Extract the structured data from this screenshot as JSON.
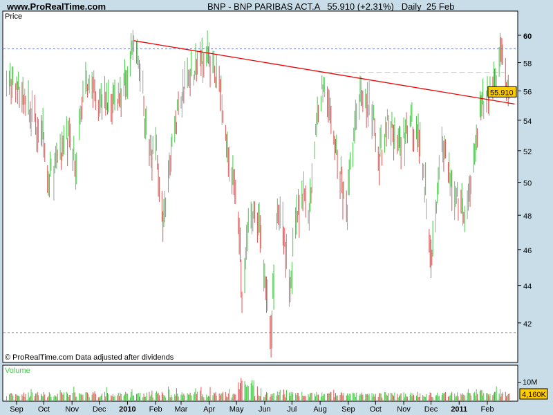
{
  "header": {
    "site": "www.ProRealTime.com",
    "title": "BNP - BNP PARIBAS ACT.A   55.910 (+2.31%)   Daily  25 Feb"
  },
  "colors": {
    "background": "#c9dde8",
    "up": "#44cc44",
    "down": "#dd5555",
    "neutral": "#a0a0a0",
    "trendline": "#ee0000",
    "last_price_box": "#ffcc00",
    "blue_level": "#6688ee"
  },
  "chart_data": {
    "type": "ohlc-bar",
    "price_panel_label": "Price",
    "footer_note": "© ProRealTime.com  Data adjusted after dividends",
    "y_scale": "log",
    "ylim": [
      41,
      61
    ],
    "y_ticks": [
      42,
      44,
      46,
      48,
      50,
      52,
      54,
      56,
      58,
      60
    ],
    "x_ticks": [
      {
        "label": "Sep",
        "date": "2009-09-01"
      },
      {
        "label": "Oct",
        "date": "2009-10-01"
      },
      {
        "label": "Nov",
        "date": "2009-11-01"
      },
      {
        "label": "Dec",
        "date": "2009-12-01"
      },
      {
        "label": "2010",
        "date": "2010-01-01",
        "bold": true
      },
      {
        "label": "Feb",
        "date": "2010-02-01"
      },
      {
        "label": "Mar",
        "date": "2010-03-01"
      },
      {
        "label": "Apr",
        "date": "2010-04-01"
      },
      {
        "label": "May",
        "date": "2010-05-01"
      },
      {
        "label": "Jun",
        "date": "2010-06-01"
      },
      {
        "label": "Jul",
        "date": "2010-07-01"
      },
      {
        "label": "Aug",
        "date": "2010-08-01"
      },
      {
        "label": "Sep",
        "date": "2010-09-01"
      },
      {
        "label": "Oct",
        "date": "2010-10-01"
      },
      {
        "label": "Nov",
        "date": "2010-11-01"
      },
      {
        "label": "Dec",
        "date": "2010-12-01"
      },
      {
        "label": "2011",
        "date": "2011-01-01",
        "bold": true
      },
      {
        "label": "Feb",
        "date": "2011-02-01"
      }
    ],
    "price_path": [
      [
        "2009-08-21",
        57
      ],
      [
        "2009-09-13",
        55
      ],
      [
        "2009-10-01",
        53
      ],
      [
        "2009-10-05",
        50
      ],
      [
        "2009-10-28",
        53
      ],
      [
        "2009-11-05",
        51
      ],
      [
        "2009-11-16",
        57
      ],
      [
        "2009-11-27",
        56
      ],
      [
        "2009-12-12",
        55
      ],
      [
        "2009-12-27",
        56
      ],
      [
        "2010-01-08",
        59.5
      ],
      [
        "2010-01-16",
        57
      ],
      [
        "2010-01-24",
        52
      ],
      [
        "2010-02-02",
        52
      ],
      [
        "2010-02-09",
        47
      ],
      [
        "2010-02-20",
        53
      ],
      [
        "2010-03-07",
        57
      ],
      [
        "2010-03-30",
        58.5
      ],
      [
        "2010-04-14",
        56
      ],
      [
        "2010-04-21",
        52
      ],
      [
        "2010-05-03",
        48
      ],
      [
        "2010-05-07",
        43
      ],
      [
        "2010-05-15",
        48
      ],
      [
        "2010-05-27",
        47
      ],
      [
        "2010-06-08",
        41.5
      ],
      [
        "2010-06-15",
        48
      ],
      [
        "2010-06-22",
        47
      ],
      [
        "2010-06-29",
        44
      ],
      [
        "2010-07-07",
        48
      ],
      [
        "2010-07-14",
        50
      ],
      [
        "2010-07-18",
        47
      ],
      [
        "2010-07-30",
        55
      ],
      [
        "2010-08-07",
        57
      ],
      [
        "2010-08-15",
        53
      ],
      [
        "2010-08-22",
        51
      ],
      [
        "2010-08-30",
        48
      ],
      [
        "2010-09-07",
        53
      ],
      [
        "2010-09-14",
        56
      ],
      [
        "2010-09-29",
        54
      ],
      [
        "2010-10-03",
        51
      ],
      [
        "2010-10-14",
        54
      ],
      [
        "2010-10-29",
        52
      ],
      [
        "2010-11-10",
        54
      ],
      [
        "2010-11-21",
        52
      ],
      [
        "2010-11-29",
        47
      ],
      [
        "2010-12-02",
        46
      ],
      [
        "2010-12-10",
        51
      ],
      [
        "2010-12-14",
        52
      ],
      [
        "2010-12-21",
        50
      ],
      [
        "2011-01-02",
        49
      ],
      [
        "2011-01-09",
        48
      ],
      [
        "2011-01-16",
        51
      ],
      [
        "2011-01-24",
        55
      ],
      [
        "2011-02-04",
        56
      ],
      [
        "2011-02-11",
        57
      ],
      [
        "2011-02-17",
        59
      ],
      [
        "2011-02-22",
        56
      ],
      [
        "2011-02-25",
        55.91
      ]
    ],
    "last_price": "55.910",
    "trendline": {
      "from": [
        "2010-01-08",
        59.6
      ],
      "to": [
        "2011-03-03",
        55.1
      ]
    },
    "horizontal_levels": [
      {
        "value": 59.0,
        "style": "dotted"
      },
      {
        "value": 41.5,
        "style": "dotted"
      },
      {
        "value": 57.3,
        "style": "dashed",
        "from": "2010-07-30",
        "to": "2011-02-20"
      }
    ],
    "volume": {
      "label": "Volume",
      "tick_label": "10M",
      "last": "4,160K"
    }
  }
}
